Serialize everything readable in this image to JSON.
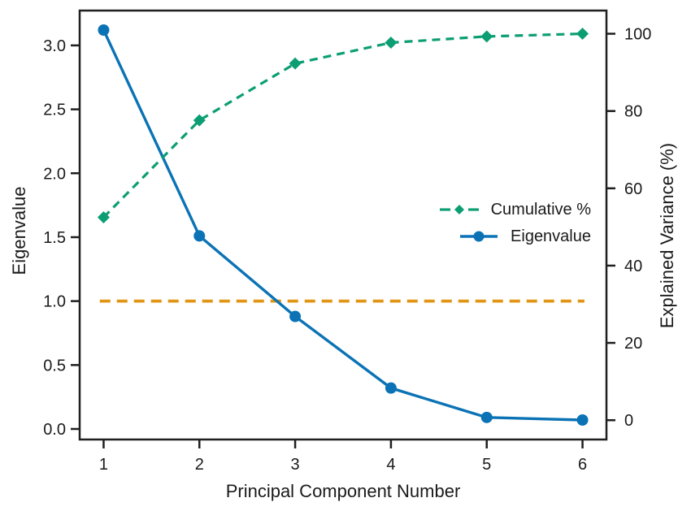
{
  "chart_data": {
    "type": "line",
    "title": "",
    "x": [
      1,
      2,
      3,
      4,
      5,
      6
    ],
    "series": [
      {
        "name": "Eigenvalue",
        "axis": "left",
        "values": [
          3.12,
          1.51,
          0.88,
          0.32,
          0.09,
          0.07
        ],
        "color": "#0B73B5",
        "line_style": "solid",
        "line_width": 3.4,
        "marker": "circle"
      },
      {
        "name": "Cumulative %",
        "axis": "right",
        "values": [
          52.5,
          77.6,
          92.3,
          97.7,
          99.3,
          100.0
        ],
        "color": "#0C9E73",
        "line_style": "dashed",
        "line_width": 3.2,
        "marker": "diamond"
      }
    ],
    "reference_line": {
      "axis": "left",
      "value": 1.0,
      "x_span": [
        0.96,
        6.02
      ],
      "color": "#E09614",
      "line_style": "dashed",
      "line_width": 3.8
    },
    "axes": {
      "x": {
        "label": "Principal Component Number",
        "ticks": [
          "1",
          "2",
          "3",
          "4",
          "5",
          "6"
        ],
        "lim": [
          0.75,
          6.25
        ]
      },
      "y_left": {
        "label": "Eigenvalue",
        "ticks": [
          "0.0",
          "0.5",
          "1.0",
          "1.5",
          "2.0",
          "2.5",
          "3.0"
        ],
        "lim": [
          -0.0825,
          3.2725
        ]
      },
      "y_right": {
        "label": "Explained Variance (%)",
        "ticks": [
          "0",
          "20",
          "40",
          "60",
          "80",
          "100"
        ],
        "lim": [
          -5,
          106
        ]
      }
    },
    "legend": {
      "entries": [
        {
          "label": "Cumulative %"
        },
        {
          "label": "Eigenvalue"
        }
      ],
      "position": "center right",
      "frame": false
    },
    "grid": false,
    "style": {
      "ink": "#1f1f1f",
      "text": "#1a1a1a",
      "background": "#ffffff"
    }
  }
}
